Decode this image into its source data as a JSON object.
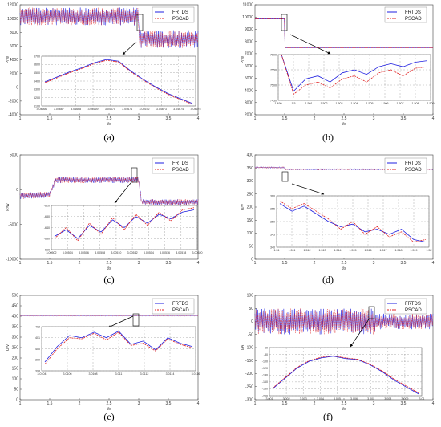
{
  "chart_data": [
    {
      "type": "line",
      "caption": "(a)",
      "ylabel": "P/W",
      "xlabel": "t/s",
      "xlim": [
        1,
        4
      ],
      "ylim": [
        -4000,
        12000
      ],
      "xticks": [
        "1",
        "1.5",
        "2",
        "2.5",
        "3",
        "3.5",
        "4"
      ],
      "yticks": [
        "-4000",
        "-2000",
        "0",
        "2000",
        "4000",
        "6000",
        "8000",
        "10000",
        "12000"
      ],
      "series": [
        {
          "name": "FRTDS",
          "color": "#1f1fe0",
          "x": [
            1,
            3.0,
            3.0,
            4
          ],
          "y": [
            10300,
            10300,
            7000,
            7000
          ],
          "band": 1300
        },
        {
          "name": "PSCAD",
          "color": "#e02020",
          "x": [
            1,
            3.0,
            3.0,
            4
          ],
          "y": [
            10300,
            10300,
            7000,
            7000
          ],
          "band": 1300
        }
      ],
      "inset": {
        "xticks": [
          "3.04666",
          "3.04667",
          "3.04668",
          "3.04669",
          "3.04670",
          "3.04671",
          "3.04672",
          "3.04673",
          "3.04674",
          "3.04675"
        ],
        "yticks": [
          "6700",
          "6600",
          "6500",
          "6400",
          "6300",
          "6200",
          "6100"
        ],
        "ylim": [
          6100,
          6700
        ],
        "series": [
          {
            "name": "FRTDS",
            "y": [
              6390,
              6450,
              6510,
              6560,
              6620,
              6660,
              6640,
              6520,
              6420,
              6330,
              6250,
              6190,
              6130
            ]
          },
          {
            "name": "PSCAD",
            "y": [
              6380,
              6440,
              6500,
              6550,
              6610,
              6650,
              6630,
              6510,
              6410,
              6320,
              6240,
              6180,
              6120
            ]
          }
        ]
      }
    },
    {
      "type": "line",
      "caption": "(b)",
      "ylabel": "P/W",
      "xlabel": "t/s",
      "xlim": [
        1,
        4
      ],
      "ylim": [
        2000,
        11000
      ],
      "xticks": [
        "1",
        "1.5",
        "2",
        "2.5",
        "3",
        "3.5",
        "4"
      ],
      "yticks": [
        "2000",
        "3000",
        "4000",
        "5000",
        "6000",
        "7000",
        "8000",
        "9000",
        "10000",
        "11000"
      ],
      "series": [
        {
          "name": "FRTDS",
          "color": "#1f1fe0",
          "x": [
            1,
            1.5,
            1.5,
            4
          ],
          "y": [
            9850,
            9850,
            7500,
            7500
          ],
          "band": 0
        },
        {
          "name": "PSCAD",
          "color": "#e02020",
          "x": [
            1,
            1.5,
            1.5,
            4
          ],
          "y": [
            9850,
            9850,
            7500,
            7500
          ],
          "band": 0
        }
      ],
      "inset": {
        "xticks": [
          "1.499",
          "1.5",
          "1.501",
          "1.502",
          "1.503",
          "1.504",
          "1.505",
          "1.506",
          "1.507",
          "1.508",
          "1.509"
        ],
        "yticks": [
          "7600",
          "7550",
          "7500",
          "7450"
        ],
        "ylim": [
          7450,
          7600
        ],
        "series": [
          {
            "name": "FRTDS",
            "y": [
              7600,
              7480,
              7520,
              7530,
              7510,
              7540,
              7550,
              7535,
              7560,
              7570,
              7560,
              7575,
              7580
            ]
          },
          {
            "name": "PSCAD",
            "y": [
              7600,
              7470,
              7500,
              7510,
              7490,
              7520,
              7530,
              7510,
              7540,
              7550,
              7530,
              7555,
              7560
            ]
          }
        ]
      }
    },
    {
      "type": "line",
      "caption": "(c)",
      "ylabel": "P/W",
      "xlabel": "t/s",
      "xlim": [
        1,
        4
      ],
      "ylim": [
        -10000,
        5000
      ],
      "xticks": [
        "1",
        "1.5",
        "2",
        "2.5",
        "3",
        "3.5",
        "4"
      ],
      "yticks": [
        "-10000",
        "-5000",
        "0",
        "5000"
      ],
      "series": [
        {
          "name": "FRTDS",
          "color": "#1f1fe0",
          "x": [
            1,
            1.5,
            1.6,
            3.0,
            3.05,
            4
          ],
          "y": [
            -900,
            -700,
            1400,
            1400,
            -1800,
            -1800
          ],
          "band": 450
        },
        {
          "name": "PSCAD",
          "color": "#e02020",
          "x": [
            1,
            1.5,
            1.6,
            3.0,
            3.05,
            4
          ],
          "y": [
            -900,
            -700,
            1400,
            1400,
            -1800,
            -1800
          ],
          "band": 450
        }
      ],
      "inset": {
        "xticks": [
          "3.00502",
          "3.00504",
          "3.00506",
          "3.00508",
          "3.00510",
          "3.00512",
          "3.00514",
          "3.00516",
          "3.00518",
          "3.00520"
        ],
        "yticks": [
          "-620",
          "-630",
          "-640",
          "-650",
          "-660"
        ],
        "ylim": [
          -660,
          -620
        ],
        "series": [
          {
            "name": "FRTDS",
            "y": [
              -648,
              -642,
              -650,
              -638,
              -644,
              -633,
              -640,
              -630,
              -636,
              -628,
              -632,
              -626,
              -624
            ]
          },
          {
            "name": "PSCAD",
            "y": [
              -650,
              -640,
              -652,
              -636,
              -646,
              -631,
              -642,
              -628,
              -638,
              -626,
              -634,
              -624,
              -622
            ]
          }
        ]
      }
    },
    {
      "type": "line",
      "caption": "(d)",
      "ylabel": "U/V",
      "xlabel": "t/s",
      "xlim": [
        1,
        4
      ],
      "ylim": [
        0,
        400
      ],
      "xticks": [
        "1",
        "1.5",
        "2",
        "2.5",
        "3",
        "3.5",
        "4"
      ],
      "yticks": [
        "0",
        "50",
        "100",
        "150",
        "200",
        "250",
        "300",
        "350",
        "400"
      ],
      "series": [
        {
          "name": "FRTDS",
          "color": "#1f1fe0",
          "x": [
            1,
            1.5,
            1.52,
            4
          ],
          "y": [
            352,
            352,
            345,
            345
          ],
          "band": 3
        },
        {
          "name": "PSCAD",
          "color": "#e02020",
          "x": [
            1,
            1.5,
            1.52,
            4
          ],
          "y": [
            352,
            352,
            345,
            345
          ],
          "band": 3
        }
      ],
      "inset": {
        "xticks": [
          "1.51",
          "1.511",
          "1.512",
          "1.513",
          "1.514",
          "1.515",
          "1.516",
          "1.517",
          "1.518",
          "1.519",
          "1.52"
        ],
        "yticks": [
          "360",
          "355",
          "350",
          "345",
          "340"
        ],
        "ylim": [
          340,
          360
        ],
        "series": [
          {
            "name": "FRTDS",
            "y": [
              357,
              354,
              356,
              353,
              350,
              348,
              349,
              346,
              347,
              345,
              347,
              343,
              342
            ]
          },
          {
            "name": "PSCAD",
            "y": [
              358,
              355,
              357,
              354,
              351,
              347,
              350,
              345,
              348,
              344,
              346,
              342,
              343
            ]
          }
        ]
      }
    },
    {
      "type": "line",
      "caption": "(e)",
      "ylabel": "U/V",
      "xlabel": "t/s",
      "xlim": [
        1,
        4
      ],
      "ylim": [
        0,
        500
      ],
      "xticks": [
        "1",
        "1.5",
        "2",
        "2.5",
        "3",
        "3.5",
        "4"
      ],
      "yticks": [
        "0",
        "50",
        "100",
        "150",
        "200",
        "250",
        "300",
        "350",
        "400",
        "450",
        "500"
      ],
      "series": [
        {
          "name": "FRTDS",
          "color": "#1f1fe0",
          "x": [
            1,
            4
          ],
          "y": [
            402,
            402
          ],
          "band": 2
        },
        {
          "name": "PSCAD",
          "color": "#e02020",
          "x": [
            1,
            4
          ],
          "y": [
            402,
            402
          ],
          "band": 2
        }
      ],
      "inset": {
        "xticks": [
          "3.0104",
          "3.0106",
          "3.0108",
          "3.011",
          "3.0112",
          "3.0114",
          "3.0116"
        ],
        "yticks": [
          "402",
          "401",
          "400",
          "399",
          "398"
        ],
        "ylim": [
          398,
          402
        ],
        "series": [
          {
            "name": "FRTDS",
            "y": [
              398.8,
              400.2,
              401.2,
              401.0,
              401.5,
              401.0,
              401.6,
              400.4,
              400.7,
              399.9,
              401.0,
              400.5,
              400.2
            ]
          },
          {
            "name": "PSCAD",
            "y": [
              398.6,
              400.0,
              401.0,
              400.9,
              401.4,
              400.8,
              401.5,
              400.3,
              400.5,
              399.8,
              400.9,
              400.4,
              400.1
            ]
          }
        ]
      }
    },
    {
      "type": "line",
      "caption": "(f)",
      "ylabel": "I/A",
      "xlabel": "t/s",
      "xlim": [
        1,
        4
      ],
      "ylim": [
        -300,
        100
      ],
      "xticks": [
        "1",
        "1.5",
        "2",
        "2.5",
        "3",
        "3.5",
        "4"
      ],
      "yticks": [
        "-300",
        "-250",
        "-200",
        "-150",
        "-100",
        "-50",
        "0",
        "50",
        "100"
      ],
      "series": [
        {
          "name": "FRTDS",
          "color": "#1f1fe0",
          "x": [
            1,
            3.0,
            3.05,
            4
          ],
          "y": [
            0,
            0,
            0,
            0
          ],
          "band": 50,
          "band2": 30
        },
        {
          "name": "PSCAD",
          "color": "#e02020",
          "x": [
            1,
            3.0,
            3.05,
            4
          ],
          "y": [
            0,
            0,
            0,
            0
          ],
          "band": 50,
          "band2": 30
        }
      ],
      "inset": {
        "xticks": [
          "3.001",
          "3.002",
          "3.003",
          "3.004",
          "3.005",
          "3.006",
          "3.007",
          "3.008",
          "3.009",
          "3.01"
        ],
        "yticks": [
          "-60",
          "-80",
          "-100",
          "-120",
          "-140",
          "-160",
          "-180",
          "-200"
        ],
        "ylim": [
          -200,
          -60
        ],
        "series": [
          {
            "name": "FRTDS",
            "y": [
              -180,
              -150,
              -120,
              -100,
              -90,
              -85,
              -92,
              -95,
              -110,
              -130,
              -155,
              -175,
              -195
            ]
          },
          {
            "name": "PSCAD",
            "y": [
              -178,
              -148,
              -118,
              -98,
              -88,
              -84,
              -90,
              -94,
              -108,
              -128,
              -152,
              -172,
              -192
            ]
          }
        ]
      }
    }
  ]
}
